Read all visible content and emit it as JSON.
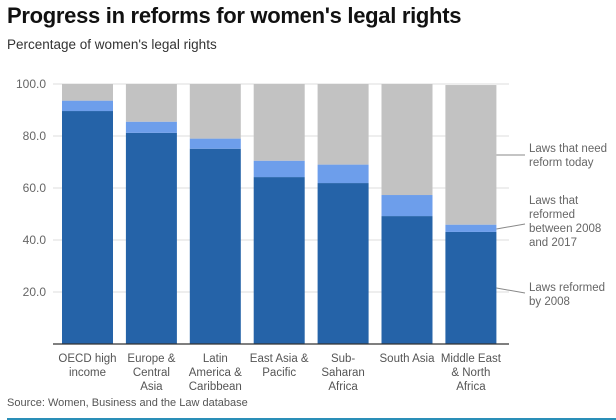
{
  "title": "Progress in reforms for women's legal rights",
  "subtitle": "Percentage of women's legal rights",
  "source": "Source: Women, Business and the Law database",
  "colors": {
    "reformed_by_2008": "#2563a8",
    "reformed_2008_2017": "#6d9eeb",
    "need_reform": "#c2c2c2",
    "gridline": "#dddddd",
    "axis": "#333333",
    "bottom_rule": "#2a8fb8"
  },
  "chart_data": {
    "type": "bar",
    "stacked": true,
    "title": "Progress in reforms for women's legal rights",
    "subtitle": "Percentage of women's legal rights",
    "xlabel": "",
    "ylabel": "",
    "ylim": [
      0,
      100
    ],
    "yticks": [
      "20.0",
      "40.0",
      "60.0",
      "80.0",
      "100.0"
    ],
    "ytick_values": [
      20,
      40,
      60,
      80,
      100
    ],
    "grid": true,
    "legend_placement": "right (inline labels)",
    "categories": [
      [
        "OECD high",
        "income"
      ],
      [
        "Europe &",
        "Central",
        "Asia"
      ],
      [
        "Latin",
        "America &",
        "Caribbean"
      ],
      [
        "East Asia &",
        "Pacific"
      ],
      [
        "Sub-",
        "Saharan",
        "Africa"
      ],
      [
        "South Asia"
      ],
      [
        "Middle East",
        "& North",
        "Africa"
      ]
    ],
    "series": [
      {
        "name": "Laws reformed by 2008",
        "legend_lines": [
          "Laws reformed",
          "by 2008"
        ],
        "color": "#2563a8",
        "values": [
          89.6,
          81.2,
          75.1,
          64.2,
          61.9,
          49.2,
          43.1
        ]
      },
      {
        "name": "Laws that reformed between 2008 and 2017",
        "legend_lines": [
          "Laws that",
          "reformed",
          "between 2008",
          "and 2017"
        ],
        "color": "#6d9eeb",
        "values": [
          4.0,
          4.3,
          3.9,
          6.3,
          7.1,
          8.1,
          2.8
        ]
      },
      {
        "name": "Laws that need reform today",
        "legend_lines": [
          "Laws that need",
          "reform today"
        ],
        "color": "#c2c2c2",
        "values": [
          6.4,
          14.5,
          21.0,
          29.5,
          31.0,
          42.7,
          53.7
        ]
      }
    ]
  }
}
